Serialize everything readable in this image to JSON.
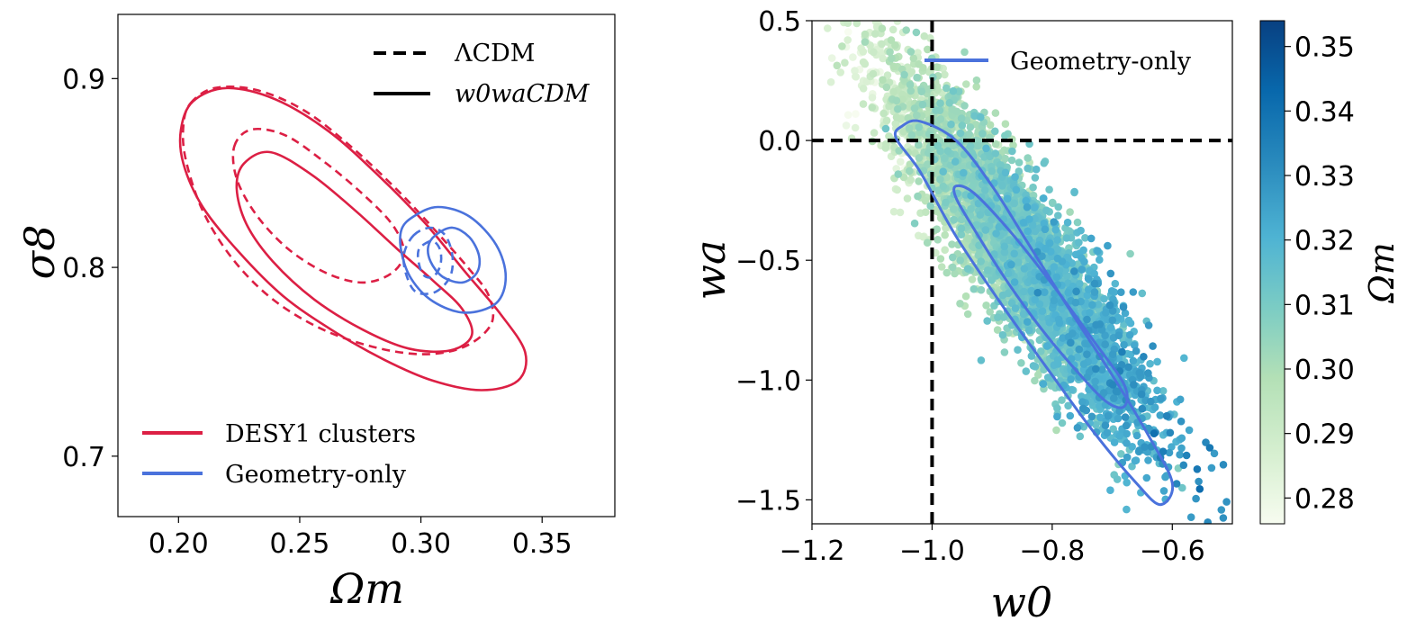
{
  "chart_data": [
    {
      "type": "contour",
      "panel": "left",
      "xlabel": "Ωm",
      "ylabel": "σ8",
      "xlim": [
        0.175,
        0.38
      ],
      "ylim": [
        0.668,
        0.934
      ],
      "xticks": [
        0.2,
        0.25,
        0.3,
        0.35
      ],
      "xtick_labels": [
        "0.20",
        "0.25",
        "0.30",
        "0.35"
      ],
      "yticks": [
        0.7,
        0.8,
        0.9
      ],
      "ytick_labels": [
        "0.7",
        "0.8",
        "0.9"
      ],
      "legend_linestyle": {
        "position": "top-right",
        "entries": [
          {
            "label": "ΛCDM",
            "style": "dashed"
          },
          {
            "label": "w0waCDM",
            "style": "solid"
          }
        ]
      },
      "legend_color": {
        "position": "bottom-left",
        "entries": [
          {
            "label": "DESY1 clusters",
            "color": "#dc1f44"
          },
          {
            "label": "Geometry-only",
            "color": "#4a72dc"
          }
        ]
      },
      "contours": [
        {
          "dataset": "DESY1 clusters",
          "model": "w0waCDM",
          "level": "95%",
          "style": "solid",
          "color": "#dc1f44",
          "points": [
            [
              0.206,
              0.888
            ],
            [
              0.22,
              0.895
            ],
            [
              0.24,
              0.889
            ],
            [
              0.262,
              0.872
            ],
            [
              0.283,
              0.848
            ],
            [
              0.302,
              0.823
            ],
            [
              0.318,
              0.798
            ],
            [
              0.333,
              0.775
            ],
            [
              0.343,
              0.755
            ],
            [
              0.34,
              0.74
            ],
            [
              0.325,
              0.735
            ],
            [
              0.305,
              0.74
            ],
            [
              0.285,
              0.751
            ],
            [
              0.263,
              0.767
            ],
            [
              0.243,
              0.785
            ],
            [
              0.225,
              0.808
            ],
            [
              0.21,
              0.832
            ],
            [
              0.202,
              0.855
            ],
            [
              0.201,
              0.873
            ]
          ]
        },
        {
          "dataset": "DESY1 clusters",
          "model": "w0waCDM",
          "level": "68%",
          "style": "solid",
          "color": "#dc1f44",
          "points": [
            [
              0.227,
              0.855
            ],
            [
              0.238,
              0.861
            ],
            [
              0.255,
              0.849
            ],
            [
              0.273,
              0.83
            ],
            [
              0.29,
              0.81
            ],
            [
              0.305,
              0.793
            ],
            [
              0.317,
              0.778
            ],
            [
              0.321,
              0.764
            ],
            [
              0.312,
              0.756
            ],
            [
              0.295,
              0.757
            ],
            [
              0.276,
              0.767
            ],
            [
              0.256,
              0.783
            ],
            [
              0.239,
              0.803
            ],
            [
              0.228,
              0.823
            ],
            [
              0.224,
              0.842
            ]
          ]
        },
        {
          "dataset": "DESY1 clusters",
          "model": "ΛCDM",
          "level": "95%",
          "style": "dashed",
          "color": "#dc1f44",
          "points": [
            [
              0.205,
              0.887
            ],
            [
              0.215,
              0.895
            ],
            [
              0.232,
              0.894
            ],
            [
              0.252,
              0.883
            ],
            [
              0.272,
              0.863
            ],
            [
              0.291,
              0.84
            ],
            [
              0.307,
              0.818
            ],
            [
              0.32,
              0.799
            ],
            [
              0.328,
              0.785
            ],
            [
              0.329,
              0.77
            ],
            [
              0.318,
              0.758
            ],
            [
              0.301,
              0.754
            ],
            [
              0.28,
              0.758
            ],
            [
              0.258,
              0.768
            ],
            [
              0.238,
              0.784
            ],
            [
              0.222,
              0.805
            ],
            [
              0.21,
              0.83
            ],
            [
              0.203,
              0.857
            ],
            [
              0.202,
              0.875
            ]
          ]
        },
        {
          "dataset": "DESY1 clusters",
          "model": "ΛCDM",
          "level": "68%",
          "style": "dashed",
          "color": "#dc1f44",
          "points": [
            [
              0.223,
              0.864
            ],
            [
              0.23,
              0.873
            ],
            [
              0.244,
              0.87
            ],
            [
              0.26,
              0.856
            ],
            [
              0.275,
              0.84
            ],
            [
              0.288,
              0.823
            ],
            [
              0.293,
              0.808
            ],
            [
              0.288,
              0.797
            ],
            [
              0.276,
              0.792
            ],
            [
              0.261,
              0.797
            ],
            [
              0.245,
              0.81
            ],
            [
              0.232,
              0.828
            ],
            [
              0.224,
              0.847
            ]
          ]
        },
        {
          "dataset": "Geometry-only",
          "model": "w0waCDM",
          "level": "95%",
          "style": "solid",
          "color": "#4a72dc",
          "points": [
            [
              0.297,
              0.827
            ],
            [
              0.307,
              0.832
            ],
            [
              0.32,
              0.827
            ],
            [
              0.331,
              0.812
            ],
            [
              0.335,
              0.795
            ],
            [
              0.331,
              0.781
            ],
            [
              0.318,
              0.776
            ],
            [
              0.305,
              0.782
            ],
            [
              0.296,
              0.794
            ],
            [
              0.292,
              0.808
            ],
            [
              0.292,
              0.82
            ]
          ]
        },
        {
          "dataset": "Geometry-only",
          "model": "w0waCDM",
          "level": "68%",
          "style": "solid",
          "color": "#4a72dc",
          "points": [
            [
              0.306,
              0.817
            ],
            [
              0.313,
              0.821
            ],
            [
              0.32,
              0.816
            ],
            [
              0.324,
              0.806
            ],
            [
              0.323,
              0.797
            ],
            [
              0.317,
              0.792
            ],
            [
              0.309,
              0.795
            ],
            [
              0.304,
              0.803
            ],
            [
              0.303,
              0.811
            ]
          ]
        },
        {
          "dataset": "Geometry-only",
          "model": "ΛCDM",
          "level": "95%",
          "style": "dashed",
          "color": "#4a72dc",
          "points": [
            [
              0.297,
              0.817
            ],
            [
              0.304,
              0.821
            ],
            [
              0.31,
              0.817
            ],
            [
              0.313,
              0.806
            ],
            [
              0.312,
              0.795
            ],
            [
              0.306,
              0.787
            ],
            [
              0.298,
              0.787
            ],
            [
              0.294,
              0.796
            ],
            [
              0.293,
              0.807
            ]
          ]
        },
        {
          "dataset": "Geometry-only",
          "model": "ΛCDM",
          "level": "68%",
          "style": "dashed",
          "color": "#4a72dc",
          "points": [
            [
              0.301,
              0.812
            ],
            [
              0.305,
              0.814
            ],
            [
              0.308,
              0.809
            ],
            [
              0.308,
              0.801
            ],
            [
              0.305,
              0.795
            ],
            [
              0.301,
              0.796
            ],
            [
              0.299,
              0.803
            ],
            [
              0.299,
              0.809
            ]
          ]
        }
      ]
    },
    {
      "type": "scatter",
      "panel": "right",
      "xlabel": "w0",
      "ylabel": "wa",
      "xlim": [
        -1.2,
        -0.5
      ],
      "ylim": [
        -1.6,
        0.5
      ],
      "xticks": [
        -1.2,
        -1.0,
        -0.8,
        -0.6
      ],
      "xtick_labels": [
        "−1.2",
        "−1.0",
        "−0.8",
        "−0.6"
      ],
      "yticks": [
        0.5,
        0.0,
        -0.5,
        -1.0,
        -1.5
      ],
      "ytick_labels": [
        "0.5",
        "0.0",
        "−0.5",
        "−1.0",
        "−1.5"
      ],
      "reference_lines": [
        {
          "orientation": "vertical",
          "value": -1.0,
          "style": "dashed",
          "color": "#000000"
        },
        {
          "orientation": "horizontal",
          "value": 0.0,
          "style": "dashed",
          "color": "#000000"
        }
      ],
      "scatter_band": {
        "description": "MCMC samples colored by Ωm",
        "count": 4200,
        "w0_range": [
          -1.18,
          -0.5
        ],
        "wa_center_at_w0_-1.0": 0.0,
        "wa_slope_per_w0": -3.2,
        "wa_scatter": 0.17,
        "color_value": "Ωm",
        "color_range": [
          0.276,
          0.354
        ]
      },
      "legend": {
        "position": "top-right",
        "entries": [
          {
            "label": "Geometry-only",
            "color": "#4a72dc",
            "style": "solid"
          }
        ]
      },
      "contours": [
        {
          "dataset": "Geometry-only",
          "level": "95%",
          "style": "solid",
          "color": "#4a72dc",
          "points": [
            [
              -1.05,
              0.06
            ],
            [
              -1.02,
              0.08
            ],
            [
              -0.96,
              0.0
            ],
            [
              -0.9,
              -0.19
            ],
            [
              -0.84,
              -0.43
            ],
            [
              -0.77,
              -0.71
            ],
            [
              -0.7,
              -0.98
            ],
            [
              -0.64,
              -1.23
            ],
            [
              -0.6,
              -1.43
            ],
            [
              -0.62,
              -1.52
            ],
            [
              -0.66,
              -1.43
            ],
            [
              -0.73,
              -1.22
            ],
            [
              -0.8,
              -0.98
            ],
            [
              -0.88,
              -0.7
            ],
            [
              -0.96,
              -0.4
            ],
            [
              -1.02,
              -0.13
            ],
            [
              -1.06,
              0.01
            ]
          ]
        },
        {
          "dataset": "Geometry-only",
          "level": "68%",
          "style": "solid",
          "color": "#4a72dc",
          "points": [
            [
              -0.96,
              -0.19
            ],
            [
              -0.93,
              -0.22
            ],
            [
              -0.87,
              -0.38
            ],
            [
              -0.8,
              -0.6
            ],
            [
              -0.73,
              -0.84
            ],
            [
              -0.68,
              -1.02
            ],
            [
              -0.68,
              -1.11
            ],
            [
              -0.71,
              -1.09
            ],
            [
              -0.76,
              -0.96
            ],
            [
              -0.82,
              -0.78
            ],
            [
              -0.88,
              -0.57
            ],
            [
              -0.93,
              -0.37
            ],
            [
              -0.96,
              -0.24
            ]
          ]
        }
      ]
    }
  ],
  "colorbar": {
    "label": "Ωm",
    "range": [
      0.276,
      0.354
    ],
    "ticks": [
      0.28,
      0.29,
      0.3,
      0.31,
      0.32,
      0.33,
      0.34,
      0.35
    ],
    "tick_labels": [
      "0.28",
      "0.29",
      "0.30",
      "0.31",
      "0.32",
      "0.33",
      "0.34",
      "0.35"
    ],
    "colormap_stops": [
      "#f7fcf0",
      "#d6efd0",
      "#b3e0b6",
      "#7bccc4",
      "#4eb3d3",
      "#2b8cbe",
      "#0868ac",
      "#084081"
    ]
  }
}
